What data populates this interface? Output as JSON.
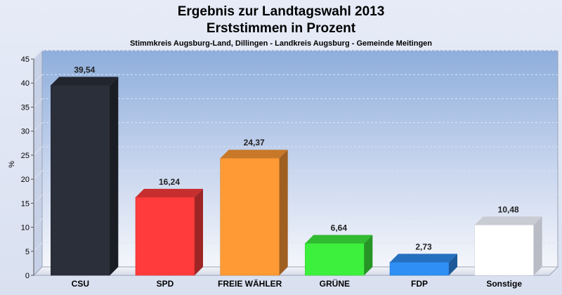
{
  "chart_data": {
    "type": "bar",
    "title": "Ergebnis zur Landtagswahl 2013",
    "subtitle": "Erststimmen in Prozent",
    "caption": "Stimmkreis Augsburg-Land, Dillingen - Landkreis Augsburg - Gemeinde Meitingen",
    "ylabel": "%",
    "xlabel": "",
    "ylim": [
      0,
      45
    ],
    "yticks": [
      0,
      5,
      10,
      15,
      20,
      25,
      30,
      35,
      40,
      45
    ],
    "grid": true,
    "categories": [
      "CSU",
      "SPD",
      "FREIE WÄHLER",
      "GRÜNE",
      "FDP",
      "Sonstige"
    ],
    "values": [
      39.54,
      16.24,
      24.37,
      6.64,
      2.73,
      10.48
    ],
    "value_labels": [
      "39,54",
      "16,24",
      "24,37",
      "6,64",
      "2,73",
      "10,48"
    ],
    "colors": [
      "#2b2f3a",
      "#ff3b3b",
      "#ff9a35",
      "#3ef03e",
      "#2f8ff5",
      "#ffffff"
    ]
  }
}
